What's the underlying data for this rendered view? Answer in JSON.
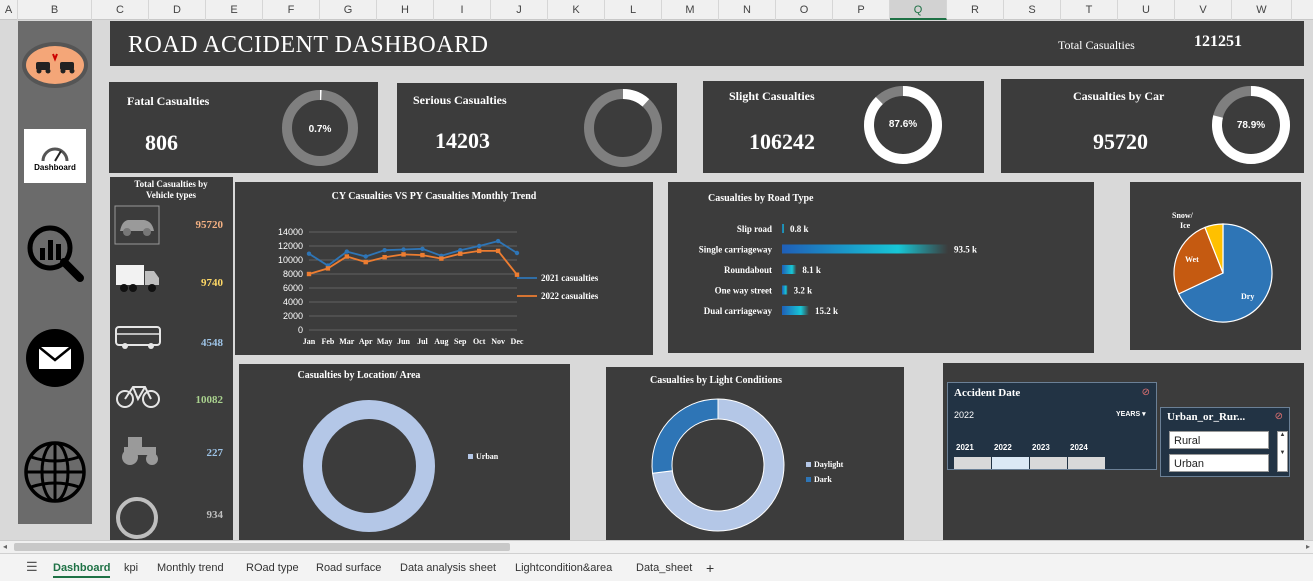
{
  "columns": [
    "A",
    "B",
    "C",
    "D",
    "E",
    "F",
    "G",
    "H",
    "I",
    "J",
    "K",
    "L",
    "M",
    "N",
    "O",
    "P",
    "Q",
    "R",
    "S",
    "T",
    "U",
    "V",
    "W"
  ],
  "selected_column": "Q",
  "header": {
    "title": "ROAD ACCIDENT DASHBOARD",
    "total_label": "Total Casualties",
    "total_value": "121251"
  },
  "nav": {
    "dashboard_label": "Dashboard",
    "icons": [
      "car-crash-icon",
      "dashboard-icon",
      "analytics-search-icon",
      "mail-icon",
      "globe-icon"
    ]
  },
  "kpis": [
    {
      "title": "Fatal Casualties",
      "value": "806",
      "pct_label": "0.7%",
      "pct": 0.007
    },
    {
      "title": "Serious Casualties",
      "value": "14203",
      "pct_label": "",
      "pct": 0.117
    },
    {
      "title": "Slight Casualties",
      "value": "106242",
      "pct_label": "87.6%",
      "pct": 0.876
    },
    {
      "title": "Casualties by Car",
      "value": "95720",
      "pct_label": "78.9%",
      "pct": 0.789
    }
  ],
  "vehicles": {
    "title": "Total  Casualties by Vehicle types",
    "items": [
      {
        "icon": "car-icon",
        "value": "95720",
        "color": "#f4b183"
      },
      {
        "icon": "truck-icon",
        "value": "9740",
        "color": "#ffd966"
      },
      {
        "icon": "bus-icon",
        "value": "4548",
        "color": "#9dc3e6"
      },
      {
        "icon": "bicycle-icon",
        "value": "10082",
        "color": "#a9d18e"
      },
      {
        "icon": "tractor-icon",
        "value": "227",
        "color": "#9dc3e6"
      },
      {
        "icon": "other-icon",
        "value": "934",
        "color": "#bfbfbf"
      }
    ]
  },
  "trend": {
    "title": "CY Casualties VS PY Casualties Monthly  Trend",
    "chart_data": {
      "type": "line",
      "categories": [
        "Jan",
        "Feb",
        "Mar",
        "Apr",
        "May",
        "Jun",
        "Jul",
        "Aug",
        "Sep",
        "Oct",
        "Nov",
        "Dec"
      ],
      "ylim": [
        0,
        14000
      ],
      "yticks": [
        "0",
        "2000",
        "4000",
        "6000",
        "8000",
        "10000",
        "12000",
        "14000"
      ],
      "series": [
        {
          "name": "2021 casualties",
          "color": "#2e75b6",
          "values": [
            10900,
            9200,
            11200,
            10500,
            11400,
            11500,
            11600,
            10600,
            11400,
            12000,
            12700,
            11000
          ]
        },
        {
          "name": "2022 casualties",
          "color": "#ed7d31",
          "values": [
            8000,
            8800,
            10500,
            9700,
            10400,
            10800,
            10700,
            10200,
            10900,
            11300,
            11300,
            7900
          ]
        }
      ]
    }
  },
  "roadtype": {
    "title": "Casualties by Road Type",
    "chart_data": {
      "type": "bar",
      "categories": [
        "Slip road",
        "Single carriageway",
        "Roundabout",
        "One way street",
        "Dual carriageway"
      ],
      "values": [
        0.8,
        93.5,
        8.1,
        3.2,
        15.2
      ],
      "labels": [
        "0.8 k",
        "93.5 k",
        "8.1 k",
        "3.2 k",
        "15.2 k"
      ]
    }
  },
  "surface": {
    "chart_data": {
      "type": "pie",
      "labels": [
        "Dry",
        "Wet",
        "Snow/ Ice"
      ],
      "values": [
        68,
        26,
        6
      ],
      "colors": [
        "#2e75b6",
        "#c55a11",
        "#ffc000"
      ]
    }
  },
  "location": {
    "title": "Casualties by Location/ Area",
    "legend": [
      "Urban"
    ],
    "chart_data": {
      "type": "pie",
      "labels": [
        "Urban"
      ],
      "values": [
        100
      ],
      "colors": [
        "#b4c7e7"
      ]
    }
  },
  "light": {
    "title": "Casualties by Light Conditions",
    "legend": [
      "Daylight",
      "Dark"
    ],
    "chart_data": {
      "type": "pie",
      "labels": [
        "Daylight",
        "Dark"
      ],
      "values": [
        73,
        27
      ],
      "colors": [
        "#b4c7e7",
        "#2e75b6"
      ]
    }
  },
  "date_slicer": {
    "title": "Accident Date",
    "selected": "2022",
    "level": "YEARS",
    "years": [
      "2021",
      "2022",
      "2023",
      "2024"
    ]
  },
  "area_slicer": {
    "title": "Urban_or_Rur...",
    "items": [
      "Rural",
      "Urban"
    ]
  },
  "sheet_tabs": [
    "Dashboard",
    "kpi",
    "Monthly trend",
    "ROad type",
    "Road surface",
    "Data analysis sheet",
    "Lightcondition&area",
    "Data_sheet"
  ]
}
